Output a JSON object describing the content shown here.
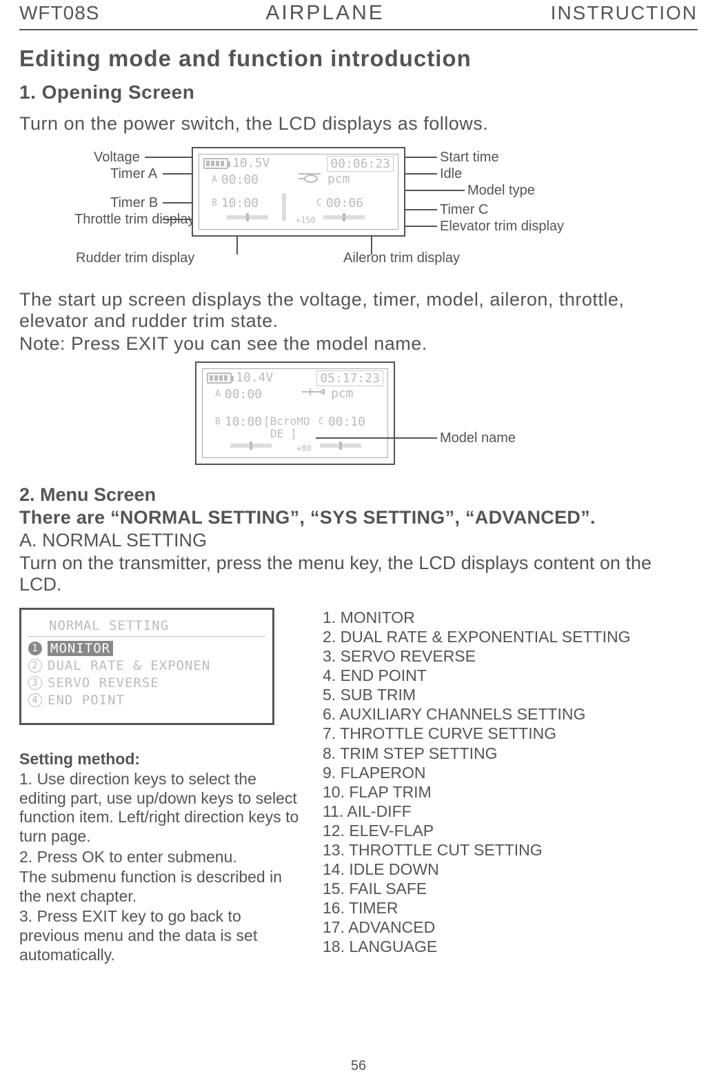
{
  "header": {
    "left": "WFT08S",
    "center": "AIRPLANE",
    "right": "INSTRUCTION"
  },
  "title": "Editing mode and function introduction",
  "section1": {
    "heading": "1. Opening Screen",
    "intro": "Turn on the power switch, the LCD displays as follows.",
    "lcd1": {
      "voltage": "10.5V",
      "start_time": "00:06:23",
      "timer_a": "00:00",
      "mode": "pcm",
      "timer_b": "10:00",
      "timer_c": "00:06",
      "extra": "+150"
    },
    "labels_left": {
      "voltage": "Voltage",
      "timer_a": "Timer A",
      "timer_b": "Timer B",
      "throttle_trim": "Throttle trim display",
      "rudder_trim": "Rudder trim display"
    },
    "labels_right": {
      "start_time": "Start time",
      "idle": "Idle",
      "model_type": "Model type",
      "timer_c": "Timer C",
      "elevator_trim": "Elevator trim display",
      "aileron_trim": "Aileron trim display"
    },
    "para": "The start up screen displays the voltage, timer, model, aileron, throttle, elevator and rudder trim  state.",
    "note": "Note: Press EXIT you can see the model name.",
    "lcd2": {
      "voltage": "10.4V",
      "start_time": "05:17:23",
      "timer_a": "00:00",
      "mode": "pcm",
      "timer_b": "10:00",
      "model_name_line": "[BcroMO",
      "model_name_line2": "DE   ]",
      "timer_c": "00:10",
      "extra": "+80"
    },
    "model_name_label": "Model name"
  },
  "section2": {
    "heading": "2. Menu Screen",
    "bold_line": "There are “NORMAL SETTING”, “SYS SETTING”, “ADVANCED”.",
    "sub_a": "A. NORMAL SETTING",
    "intro": "Turn on the transmitter,  press the menu key, the LCD displays content on the LCD.",
    "menu_screenshot": {
      "title": "NORMAL SETTING",
      "rows": [
        {
          "n": "1",
          "text": "MONITOR",
          "selected": true
        },
        {
          "n": "2",
          "text": "DUAL RATE & EXPONEN",
          "selected": false
        },
        {
          "n": "3",
          "text": "SERVO REVERSE",
          "selected": false
        },
        {
          "n": "4",
          "text": "END POINT",
          "selected": false
        }
      ]
    },
    "setting_method": {
      "heading": "Setting method:",
      "p1": "1. Use direction keys to select the editing part, use up/down keys to select function item. Left/right direction keys to turn page.",
      "p2": "2. Press OK to enter submenu.",
      "p3": "The submenu function is described  in the next chapter.",
      "p4": "3. Press EXIT key to go back to previous menu and the data is set automatically."
    },
    "menu_items": [
      "1. MONITOR",
      "2. DUAL RATE & EXPONENTIAL SETTING",
      "3. SERVO REVERSE",
      "4. END POINT",
      "5. SUB TRIM",
      "6. AUXILIARY CHANNELS SETTING",
      "7. THROTTLE CURVE SETTING",
      "8. TRIM STEP SETTING",
      "9. FLAPERON",
      "10. FLAP TRIM",
      "11. AIL-DIFF",
      "12. ELEV-FLAP",
      "13. THROTTLE CUT SETTING",
      "14. IDLE DOWN",
      "15. FAIL SAFE",
      "16. TIMER",
      "17. ADVANCED",
      "18. LANGUAGE"
    ]
  },
  "page_number": "56"
}
